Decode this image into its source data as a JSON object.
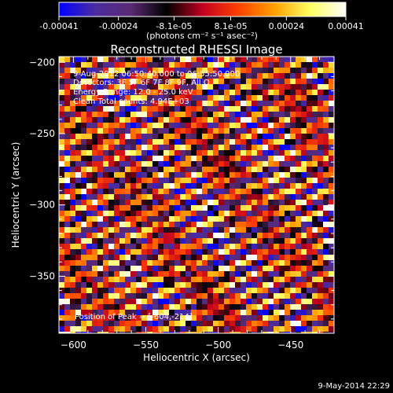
{
  "colorbar": {
    "ticks": [
      "-0.00041",
      "-0.00024",
      "-8.1e-05",
      "8.1e-05",
      "0.00024",
      "0.00041"
    ],
    "unit_text": "(photons cm⁻² s⁻¹ asec⁻²)"
  },
  "plot": {
    "title": "Reconstructed RHESSI Image",
    "xlabel": "Heliocentric X (arcsec)",
    "ylabel": "Heliocentric Y (arcsec)",
    "annotations": [
      "9-Aug-2012 06:50:40.000 to 06:55:50.000",
      "Detectors: 3F 5F 6F 7F 8F 9F, All O",
      "Energy Range: 12.0 - 25.0 keV",
      "Clean    Total counts: 4.94E+03"
    ],
    "peak_text": "Position of Peak = [-604,-214]"
  },
  "footer": {
    "timestamp": "9-May-2014 22:29"
  },
  "chart_data": {
    "type": "heatmap",
    "title": "Reconstructed RHESSI Image",
    "xlabel": "Heliocentric X (arcsec)",
    "ylabel": "Heliocentric Y (arcsec)",
    "xlim": [
      -610,
      -420
    ],
    "ylim": [
      -390,
      -196
    ],
    "x_ticks": [
      -600,
      -550,
      -500,
      -450
    ],
    "y_ticks": [
      -200,
      -250,
      -300,
      -350
    ],
    "color_range": [
      -0.00041,
      0.00041
    ],
    "colormap": [
      "#0000ff",
      "#4b2ca0",
      "#5a2a72",
      "#000000",
      "#c00020",
      "#ff4000",
      "#ffa000",
      "#ffff60",
      "#ffffff"
    ],
    "peak_position": [
      -604,
      -214
    ]
  }
}
